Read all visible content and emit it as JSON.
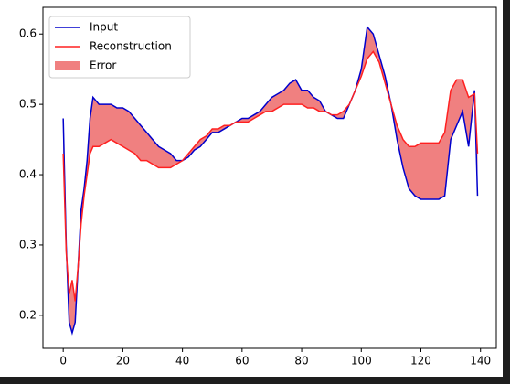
{
  "chart_data": {
    "type": "line",
    "x": [
      0,
      1,
      2,
      3,
      4,
      5,
      6,
      7,
      8,
      9,
      10,
      12,
      14,
      16,
      18,
      20,
      22,
      24,
      26,
      28,
      30,
      32,
      34,
      36,
      38,
      40,
      42,
      44,
      46,
      48,
      50,
      52,
      54,
      56,
      58,
      60,
      62,
      64,
      66,
      68,
      70,
      72,
      74,
      76,
      78,
      80,
      82,
      84,
      86,
      88,
      90,
      92,
      94,
      96,
      98,
      100,
      102,
      104,
      106,
      108,
      110,
      112,
      114,
      116,
      118,
      120,
      122,
      124,
      126,
      128,
      130,
      132,
      134,
      136,
      138,
      139
    ],
    "series": [
      {
        "name": "Input",
        "color": "#0000cc",
        "values": [
          0.48,
          0.3,
          0.19,
          0.175,
          0.19,
          0.27,
          0.35,
          0.38,
          0.42,
          0.48,
          0.51,
          0.5,
          0.5,
          0.5,
          0.495,
          0.495,
          0.49,
          0.48,
          0.47,
          0.46,
          0.45,
          0.44,
          0.435,
          0.43,
          0.42,
          0.42,
          0.425,
          0.435,
          0.44,
          0.45,
          0.46,
          0.46,
          0.465,
          0.47,
          0.475,
          0.48,
          0.48,
          0.485,
          0.49,
          0.5,
          0.51,
          0.515,
          0.52,
          0.53,
          0.535,
          0.52,
          0.52,
          0.51,
          0.505,
          0.49,
          0.485,
          0.48,
          0.48,
          0.5,
          0.52,
          0.55,
          0.61,
          0.6,
          0.57,
          0.54,
          0.5,
          0.45,
          0.41,
          0.38,
          0.37,
          0.365,
          0.365,
          0.365,
          0.365,
          0.37,
          0.45,
          0.47,
          0.49,
          0.44,
          0.52,
          0.37
        ]
      },
      {
        "name": "Reconstruction",
        "color": "#ff2020",
        "values": [
          0.43,
          0.29,
          0.23,
          0.25,
          0.22,
          0.27,
          0.33,
          0.37,
          0.4,
          0.43,
          0.44,
          0.44,
          0.445,
          0.45,
          0.445,
          0.44,
          0.435,
          0.43,
          0.42,
          0.42,
          0.415,
          0.41,
          0.41,
          0.41,
          0.415,
          0.42,
          0.43,
          0.44,
          0.45,
          0.455,
          0.465,
          0.465,
          0.47,
          0.47,
          0.475,
          0.475,
          0.475,
          0.48,
          0.485,
          0.49,
          0.49,
          0.495,
          0.5,
          0.5,
          0.5,
          0.5,
          0.495,
          0.495,
          0.49,
          0.49,
          0.485,
          0.485,
          0.49,
          0.5,
          0.52,
          0.54,
          0.565,
          0.575,
          0.56,
          0.53,
          0.5,
          0.47,
          0.45,
          0.44,
          0.44,
          0.445,
          0.445,
          0.445,
          0.445,
          0.46,
          0.52,
          0.535,
          0.535,
          0.51,
          0.515,
          0.43
        ]
      }
    ],
    "error_band": {
      "name": "Error",
      "color": "#f08080"
    },
    "xlim": [
      -6.8,
      145.3
    ],
    "xticks": [
      0,
      20,
      40,
      60,
      80,
      100,
      120,
      140
    ],
    "ylim": [
      0.153,
      0.638
    ],
    "yticks": [
      0.2,
      0.3,
      0.4,
      0.5,
      0.6
    ],
    "grid": false,
    "legend": "upper-left"
  }
}
